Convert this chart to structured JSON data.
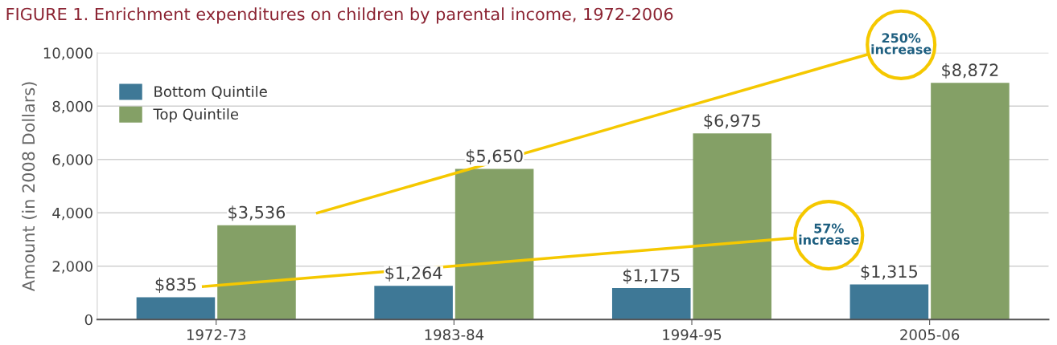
{
  "chart_data": {
    "type": "bar",
    "title": "FIGURE 1. Enrichment expenditures on children by parental income, 1972-2006",
    "ylabel": "Amount (in 2008 Dollars)",
    "categories": [
      "1972-73",
      "1983-84",
      "1994-95",
      "2005-06"
    ],
    "series": [
      {
        "name": "Bottom Quintile",
        "color": "#3e7896",
        "values": [
          835,
          1264,
          1175,
          1315
        ],
        "value_labels": [
          "$835",
          "$1,264",
          "$1,175",
          "$1,315"
        ]
      },
      {
        "name": "Top Quintile",
        "color": "#84a066",
        "values": [
          3536,
          5650,
          6975,
          8872
        ],
        "value_labels": [
          "$3,536",
          "$5,650",
          "$6,975",
          "$8,872"
        ]
      }
    ],
    "ylim": [
      0,
      10000
    ],
    "yticks": [
      {
        "value": 0,
        "label": "0"
      },
      {
        "value": 2000,
        "label": "2,000"
      },
      {
        "value": 4000,
        "label": "4,000"
      },
      {
        "value": 6000,
        "label": "6,000"
      },
      {
        "value": 8000,
        "label": "8,000"
      },
      {
        "value": 10000,
        "label": "10,000"
      }
    ],
    "grid": "y",
    "legend": "top left",
    "annotations": [
      "250%\nincrease",
      "57%\nincrease"
    ]
  }
}
